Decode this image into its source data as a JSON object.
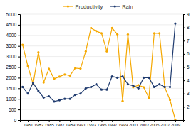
{
  "chart_data": {
    "type": "line",
    "x": [
      1980,
      1981,
      1982,
      1983,
      1984,
      1985,
      1986,
      1987,
      1988,
      1989,
      1990,
      1991,
      1992,
      1993,
      1994,
      1995,
      1996,
      1997,
      1998,
      1999,
      2000,
      2001,
      2002,
      2003,
      2004,
      2005,
      2006,
      2007,
      2008,
      2009
    ],
    "series": [
      {
        "name": "Productivity",
        "color": "#F5A800",
        "values": [
          3550,
          2550,
          1700,
          3200,
          1780,
          2420,
          1950,
          2050,
          2150,
          2100,
          2450,
          2430,
          3250,
          4350,
          4200,
          4100,
          3250,
          4350,
          4050,
          900,
          4050,
          1550,
          1650,
          1550,
          1050,
          4100,
          4100,
          1550,
          950,
          20
        ]
      },
      {
        "name": "Rain",
        "color": "#1E3A6E",
        "axis": "y2",
        "values": [
          3.5,
          3.0,
          3.8,
          3.2,
          2.7,
          2.8,
          2.4,
          2.5,
          2.6,
          2.6,
          2.9,
          3.0,
          3.4,
          3.5,
          3.7,
          3.3,
          3.3,
          4.3,
          4.2,
          4.3,
          3.7,
          3.6,
          3.4,
          4.2,
          4.2,
          3.5,
          3.7,
          3.5,
          3.5,
          8.3
        ]
      }
    ],
    "xlim": [
      1979.5,
      2010.5
    ],
    "xticks": [
      1981,
      1983,
      1985,
      1987,
      1989,
      1991,
      1993,
      1995,
      1997,
      1999,
      2001,
      2003,
      2005,
      2007,
      2009
    ],
    "ylim": [
      0,
      5000
    ],
    "yticks": [
      0,
      500,
      1000,
      1500,
      2000,
      2500,
      3000,
      3500,
      4000,
      4500,
      5000
    ],
    "y2lim": [
      1,
      9
    ],
    "y2ticks": [
      2,
      3,
      4,
      5,
      6,
      7,
      8,
      9
    ],
    "grid": true,
    "legend": "top",
    "marker": "circle"
  }
}
